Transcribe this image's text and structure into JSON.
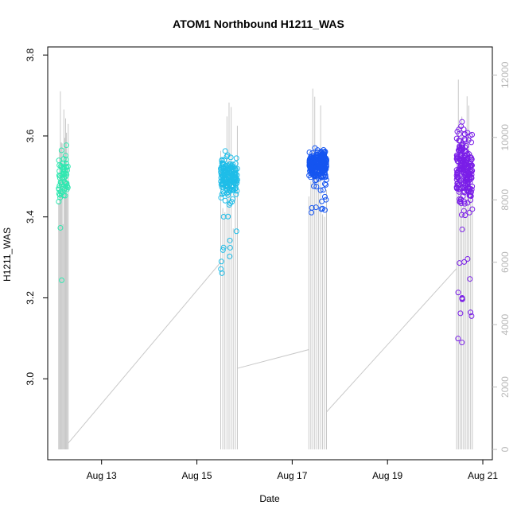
{
  "chart_data": {
    "type": "scatter",
    "title": "ATOM1 Northbound H1211_WAS",
    "xlabel": "Date",
    "ylabel": "H1211_WAS",
    "x_ticks": [
      "Aug 13",
      "Aug 15",
      "Aug 17",
      "Aug 19",
      "Aug 21"
    ],
    "x_tick_values": [
      13,
      15,
      17,
      19,
      21
    ],
    "xlim": [
      11.87,
      21.2
    ],
    "y_ticks": [
      "3.0",
      "3.2",
      "3.4",
      "3.6",
      "3.8"
    ],
    "y_tick_values": [
      3.0,
      3.2,
      3.4,
      3.6,
      3.8
    ],
    "ylim": [
      2.8,
      3.82
    ],
    "y2_ticks": [
      "0",
      "2000",
      "4000",
      "6000",
      "8000",
      "10000",
      "12000"
    ],
    "y2_tick_values": [
      0,
      2000,
      4000,
      6000,
      8000,
      10000,
      12000
    ],
    "y2lim": [
      -330,
      12900
    ],
    "y2_color": "#bdbdbd",
    "series": [
      {
        "color": "#2ee8b0",
        "x": [
          12.1,
          12.3
        ],
        "y_center": 3.5,
        "y_min": 3.07,
        "y_max": 3.62,
        "n": 60
      },
      {
        "color": "#1fbde8",
        "x": [
          15.5,
          15.85
        ],
        "y_center": 3.5,
        "y_min": 3.25,
        "y_max": 3.65,
        "n": 180
      },
      {
        "color": "#1555f0",
        "x": [
          17.35,
          17.72
        ],
        "y_center": 3.53,
        "y_min": 3.4,
        "y_max": 3.68,
        "n": 260
      },
      {
        "color": "#7a1ee8",
        "x": [
          20.45,
          20.78
        ],
        "y_center": 3.52,
        "y_min": 2.93,
        "y_max": 3.78,
        "n": 230
      }
    ],
    "altitude_line": {
      "color": "#c8c8c8",
      "x": [
        12.1,
        12.3,
        15.5,
        15.85,
        17.35,
        17.72,
        20.45,
        20.78
      ],
      "y2": [
        0,
        200,
        6000,
        2600,
        3200,
        1200,
        5800,
        8500
      ],
      "spikes_max": [
        11500,
        11800,
        12000,
        12000
      ]
    },
    "grid": false,
    "legend": "none"
  }
}
